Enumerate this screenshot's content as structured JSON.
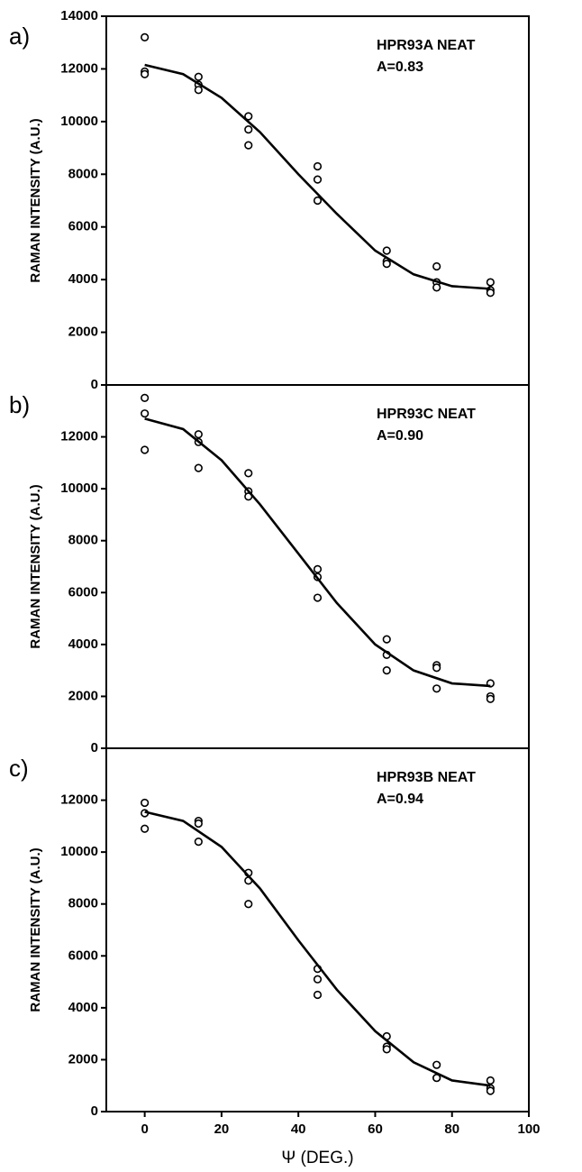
{
  "chart_data": [
    {
      "type": "scatter",
      "panel_label": "a)",
      "annotations": [
        "HPR93A NEAT",
        "A=0.83"
      ],
      "ylabel": "RAMAN INTENSITY (A.U.)",
      "xlim": [
        -10,
        100
      ],
      "ylim": [
        0,
        14000
      ],
      "yticks": [
        0,
        2000,
        4000,
        6000,
        8000,
        10000,
        12000,
        14000
      ],
      "color": "#000000",
      "series": [
        {
          "type": "scatter",
          "x": [
            0,
            0,
            0,
            14,
            14,
            14,
            27,
            27,
            27,
            45,
            45,
            45,
            63,
            63,
            63,
            76,
            76,
            76,
            90,
            90,
            90
          ],
          "values": [
            13200,
            11900,
            11800,
            11700,
            11400,
            11200,
            10200,
            9700,
            9100,
            8300,
            7800,
            7000,
            5100,
            4700,
            4600,
            4500,
            3900,
            3700,
            3900,
            3600,
            3500
          ]
        },
        {
          "type": "line",
          "x": [
            0,
            10,
            20,
            30,
            40,
            50,
            60,
            70,
            80,
            90
          ],
          "values": [
            12150,
            11800,
            10900,
            9600,
            8000,
            6500,
            5100,
            4200,
            3750,
            3650
          ]
        }
      ]
    },
    {
      "type": "scatter",
      "panel_label": "b)",
      "annotations": [
        "HPR93C NEAT",
        "A=0.90"
      ],
      "ylabel": "RAMAN INTENSITY (A.U.)",
      "xlim": [
        -10,
        100
      ],
      "ylim": [
        0,
        14000
      ],
      "yticks": [
        0,
        2000,
        4000,
        6000,
        8000,
        10000,
        12000
      ],
      "color": "#000000",
      "series": [
        {
          "type": "scatter",
          "x": [
            0,
            0,
            0,
            14,
            14,
            14,
            27,
            27,
            27,
            45,
            45,
            45,
            63,
            63,
            63,
            76,
            76,
            76,
            90,
            90,
            90
          ],
          "values": [
            13500,
            12900,
            11500,
            12100,
            11800,
            10800,
            10600,
            9900,
            9700,
            6900,
            6600,
            5800,
            4200,
            3600,
            3000,
            3200,
            3100,
            2300,
            2500,
            2000,
            1900
          ]
        },
        {
          "type": "line",
          "x": [
            0,
            10,
            20,
            30,
            40,
            50,
            60,
            70,
            80,
            90
          ],
          "values": [
            12700,
            12300,
            11100,
            9400,
            7500,
            5600,
            4000,
            3000,
            2500,
            2400
          ]
        }
      ]
    },
    {
      "type": "scatter",
      "panel_label": "c)",
      "annotations": [
        "HPR93B NEAT",
        "A=0.94"
      ],
      "ylabel": "RAMAN INTENSITY (A.U.)",
      "xlabel": "Ψ (DEG.)",
      "xlim": [
        -10,
        100
      ],
      "xticks": [
        0,
        20,
        40,
        60,
        80,
        100
      ],
      "ylim": [
        0,
        14000
      ],
      "yticks": [
        0,
        2000,
        4000,
        6000,
        8000,
        10000,
        12000
      ],
      "color": "#000000",
      "series": [
        {
          "type": "scatter",
          "x": [
            0,
            0,
            0,
            14,
            14,
            14,
            27,
            27,
            27,
            45,
            45,
            45,
            63,
            63,
            63,
            76,
            76,
            76,
            90,
            90,
            90
          ],
          "values": [
            11900,
            11500,
            10900,
            11200,
            11100,
            10400,
            9200,
            8900,
            8000,
            5500,
            5100,
            4500,
            2900,
            2500,
            2400,
            1800,
            1300,
            1300,
            1200,
            900,
            800
          ]
        },
        {
          "type": "line",
          "x": [
            0,
            10,
            20,
            30,
            40,
            50,
            60,
            70,
            80,
            90
          ],
          "values": [
            11550,
            11200,
            10200,
            8600,
            6600,
            4700,
            3100,
            1900,
            1200,
            1000
          ]
        }
      ]
    }
  ]
}
